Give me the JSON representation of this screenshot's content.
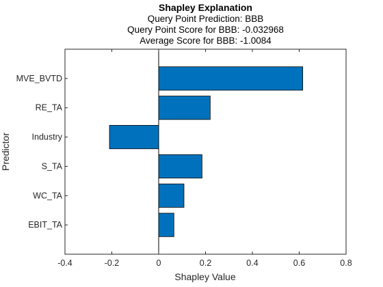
{
  "figure": {
    "title": "Shapley Explanation",
    "subtitle_lines": [
      "Query Point Prediction: BBB",
      "Query Point Score for BBB: -0.032968",
      "Average Score for BBB: -1.0084"
    ]
  },
  "chart_data": {
    "type": "bar",
    "orientation": "horizontal",
    "title": "Shapley Explanation",
    "xlabel": "Shapley Value",
    "ylabel": "Predictor",
    "categories": [
      "MVE_BVTD",
      "RE_TA",
      "Industry",
      "S_TA",
      "WC_TA",
      "EBIT_TA"
    ],
    "values": [
      0.615,
      0.22,
      -0.21,
      0.185,
      0.108,
      0.065
    ],
    "xlim": [
      -0.4,
      0.8
    ],
    "xticks": [
      "-0.4",
      "-0.2",
      "0",
      "0.2",
      "0.4",
      "0.6",
      "0.8"
    ],
    "xtick_values": [
      -0.4,
      -0.2,
      0,
      0.2,
      0.4,
      0.6,
      0.8
    ],
    "grid": false,
    "legend": "none",
    "colors": {
      "bar_fill": "#0072BD",
      "bar_edge": "#000000",
      "axis": "#262626"
    }
  }
}
